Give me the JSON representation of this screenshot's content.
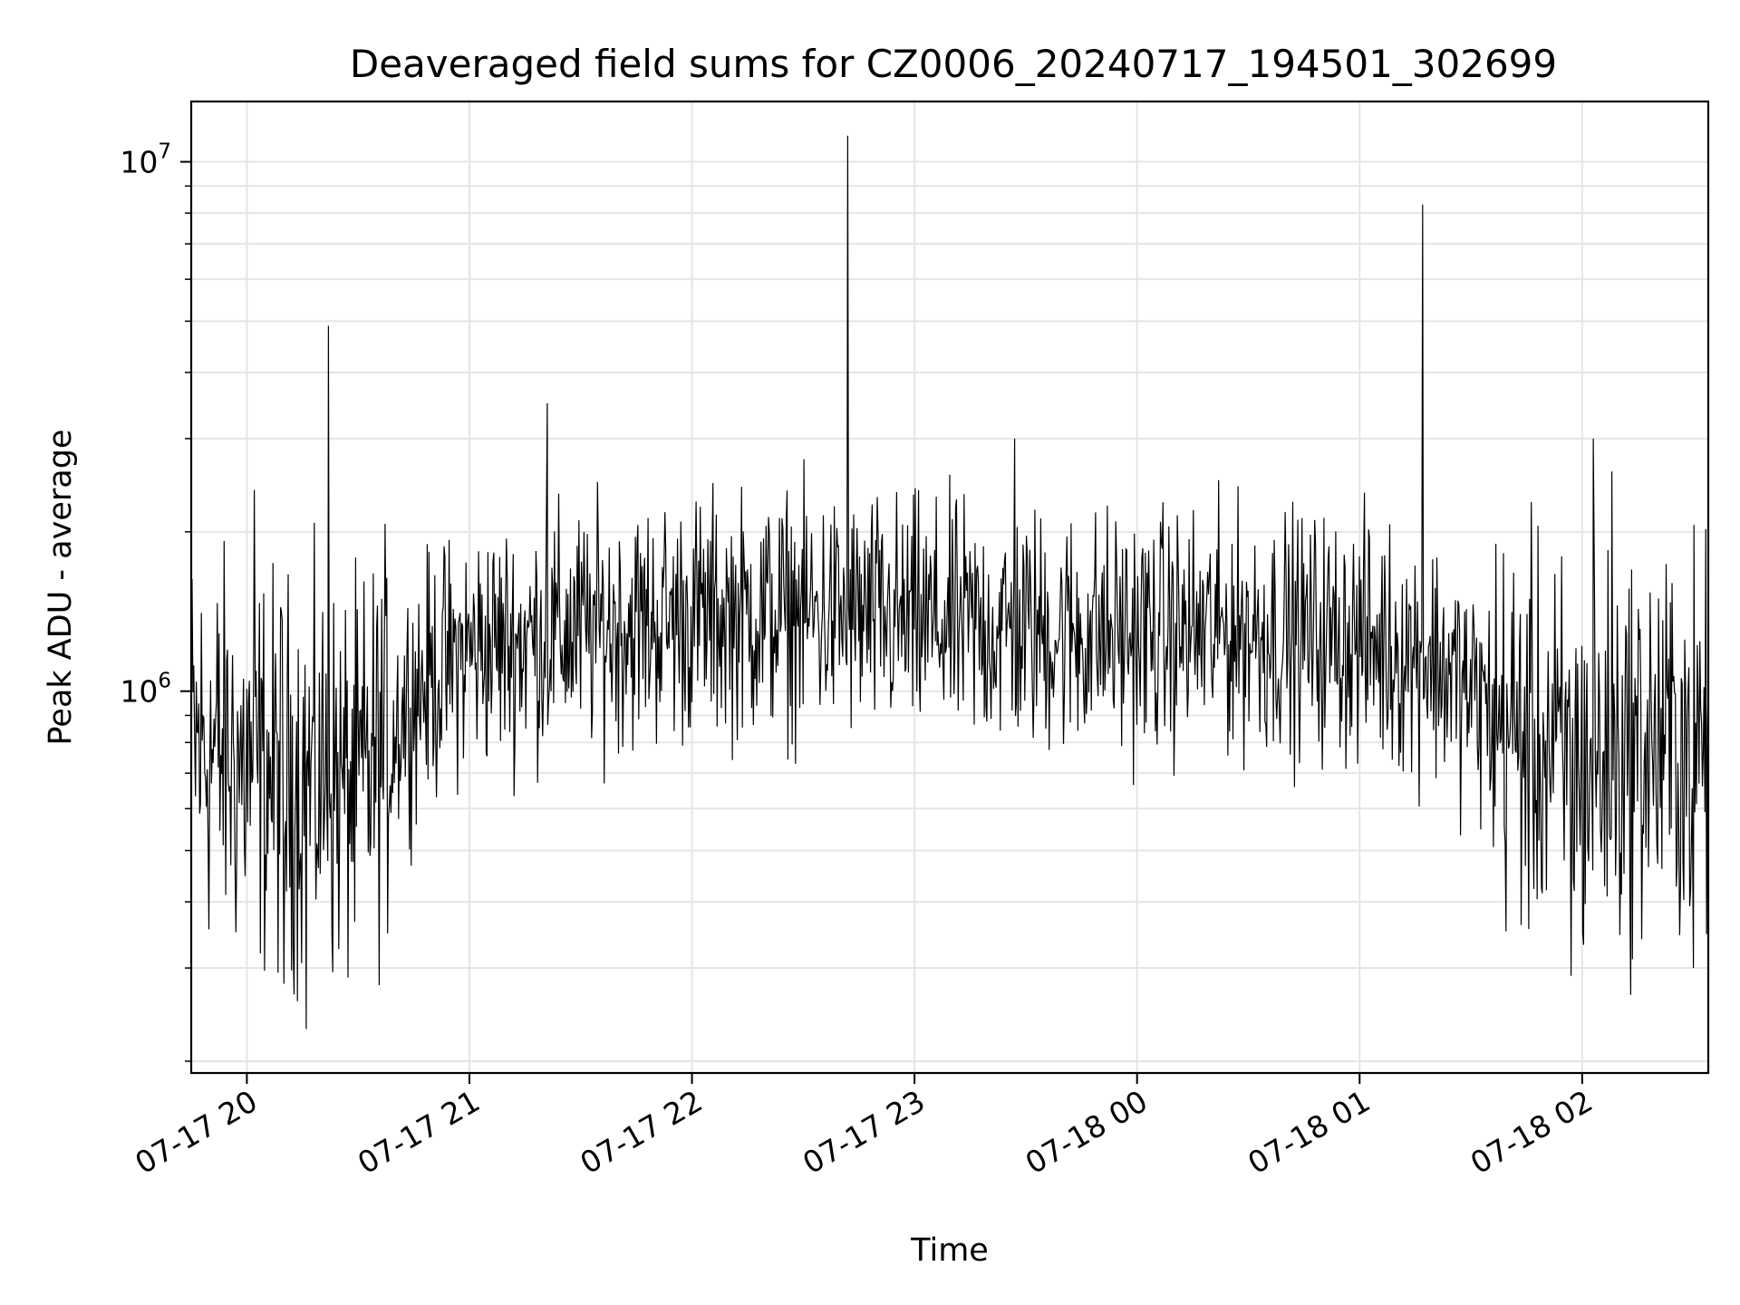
{
  "chart_data": {
    "type": "line",
    "title": "Deaveraged field sums for CZ0006_20240717_194501_302699",
    "xlabel": "Time",
    "ylabel": "Peak ADU - average",
    "x_range": [
      "2024-07-17 19:45",
      "2024-07-18 02:34"
    ],
    "y_scale": "log",
    "ylim": [
      190000,
      13000000
    ],
    "grid": true,
    "line_color": "#000000",
    "x_ticks": [
      {
        "hour": 0,
        "label": "07-17 20"
      },
      {
        "hour": 1,
        "label": "07-17 21"
      },
      {
        "hour": 2,
        "label": "07-17 22"
      },
      {
        "hour": 3,
        "label": "07-17 23"
      },
      {
        "hour": 4,
        "label": "07-18 00"
      },
      {
        "hour": 5,
        "label": "07-18 01"
      },
      {
        "hour": 6,
        "label": "07-18 02"
      }
    ],
    "y_ticks": [
      {
        "value": 1000000,
        "base": "10",
        "exp": "6"
      },
      {
        "value": 10000000,
        "base": "10",
        "exp": "7"
      }
    ],
    "series": [
      {
        "x": [
          "2024-07-17 19:45",
          "2024-07-17 20:00",
          "2024-07-17 20:15",
          "2024-07-17 20:30",
          "2024-07-17 20:45",
          "2024-07-17 21:00",
          "2024-07-17 21:30",
          "2024-07-17 22:00",
          "2024-07-17 22:30",
          "2024-07-17 23:00",
          "2024-07-17 23:30",
          "2024-07-18 00:00",
          "2024-07-18 00:30",
          "2024-07-18 01:00",
          "2024-07-18 01:20",
          "2024-07-18 01:40",
          "2024-07-18 02:00",
          "2024-07-18 02:15",
          "2024-07-18 02:34"
        ],
        "y": [
          800000,
          720000,
          680000,
          650000,
          1000000,
          1200000,
          1300000,
          1380000,
          1400000,
          1350000,
          1300000,
          1280000,
          1300000,
          1250000,
          1150000,
          850000,
          700000,
          780000,
          800000
        ],
        "spikes": [
          {
            "x": "2024-07-17 20:02",
            "y": 2400000
          },
          {
            "x": "2024-07-17 20:22",
            "y": 4900000
          },
          {
            "x": "2024-07-17 21:21",
            "y": 3500000
          },
          {
            "x": "2024-07-17 22:42",
            "y": 11200000
          },
          {
            "x": "2024-07-17 23:27",
            "y": 3000000
          },
          {
            "x": "2024-07-18 01:17",
            "y": 8300000
          },
          {
            "x": "2024-07-18 02:03",
            "y": 3000000
          },
          {
            "x": "2024-07-18 02:08",
            "y": 2600000
          }
        ],
        "dips": [
          {
            "x": "2024-07-17 20:16",
            "y": 230000
          },
          {
            "x": "2024-07-17 20:10",
            "y": 280000
          },
          {
            "x": "2024-07-18 01:57",
            "y": 290000
          },
          {
            "x": "2024-07-18 02:30",
            "y": 300000
          }
        ]
      }
    ]
  }
}
